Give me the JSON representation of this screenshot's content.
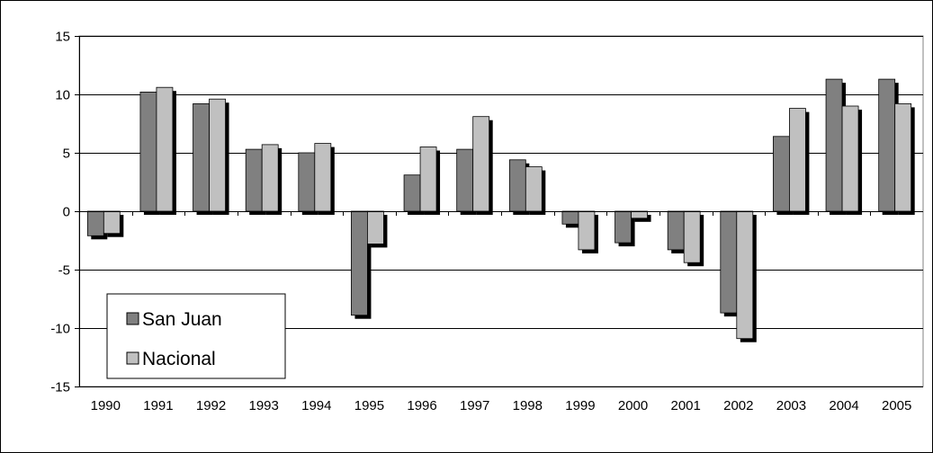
{
  "chart_data": {
    "type": "bar",
    "categories": [
      "1990",
      "1991",
      "1992",
      "1993",
      "1994",
      "1995",
      "1996",
      "1997",
      "1998",
      "1999",
      "2000",
      "2001",
      "2002",
      "2003",
      "2004",
      "2005"
    ],
    "series": [
      {
        "name": "San Juan",
        "color": "#808080",
        "values": [
          -2.1,
          10.2,
          9.2,
          5.3,
          5.0,
          -8.9,
          3.1,
          5.3,
          4.4,
          -1.1,
          -2.7,
          -3.3,
          -8.7,
          6.4,
          11.3,
          11.3
        ]
      },
      {
        "name": "Nacional",
        "color": "#c0c0c0",
        "values": [
          -1.9,
          10.6,
          9.6,
          5.7,
          5.8,
          -2.8,
          5.5,
          8.1,
          3.8,
          -3.3,
          -0.6,
          -4.4,
          -10.9,
          8.8,
          9.0,
          9.2
        ]
      }
    ],
    "ylim": [
      -15,
      15
    ],
    "yticks": [
      "-15",
      "-10",
      "-5",
      "0",
      "5",
      "10",
      "15"
    ],
    "title": "",
    "xlabel": "",
    "ylabel": "",
    "grid": true,
    "legend_position": "bottom-left",
    "shadow_color": "#000000"
  }
}
